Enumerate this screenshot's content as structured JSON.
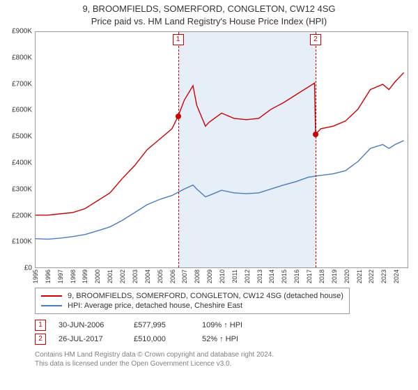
{
  "title_line1": "9, BROOMFIELDS, SOMERFORD, CONGLETON, CW12 4SG",
  "title_line2": "Price paid vs. HM Land Registry's House Price Index (HPI)",
  "colors": {
    "series_price": "#cc0000",
    "series_hpi": "#4a7bbf",
    "shade": "rgba(173,199,232,0.30)",
    "grid": "#999999",
    "text": "#333333",
    "footer": "#808080",
    "background": "#ffffff"
  },
  "chart": {
    "type": "line",
    "x_domain": [
      1995,
      2025
    ],
    "y_domain": [
      0,
      900
    ],
    "y_unit_prefix": "£",
    "y_unit_suffix": "K",
    "x_ticks": [
      1995,
      1996,
      1997,
      1998,
      1999,
      2000,
      2001,
      2002,
      2003,
      2004,
      2005,
      2006,
      2007,
      2008,
      2009,
      2010,
      2011,
      2012,
      2013,
      2014,
      2015,
      2016,
      2017,
      2018,
      2019,
      2020,
      2021,
      2022,
      2023,
      2024
    ],
    "y_ticks": [
      0,
      100,
      200,
      300,
      400,
      500,
      600,
      700,
      800,
      900
    ],
    "grid": false,
    "shade_from_x": 2006.5,
    "shade_to_x": 2017.58,
    "line_width": 1.4,
    "series": {
      "price": {
        "label": "9, BROOMFIELDS, SOMERFORD, CONGLETON, CW12 4SG (detached house)",
        "color": "#cc0000",
        "points": [
          [
            1995,
            200
          ],
          [
            1996,
            200
          ],
          [
            1997,
            205
          ],
          [
            1998,
            210
          ],
          [
            1999,
            225
          ],
          [
            2000,
            255
          ],
          [
            2001,
            285
          ],
          [
            2002,
            340
          ],
          [
            2003,
            390
          ],
          [
            2004,
            450
          ],
          [
            2005,
            490
          ],
          [
            2006,
            530
          ],
          [
            2006.5,
            578
          ],
          [
            2007,
            640
          ],
          [
            2007.7,
            695
          ],
          [
            2008,
            620
          ],
          [
            2008.7,
            540
          ],
          [
            2009,
            555
          ],
          [
            2010,
            590
          ],
          [
            2011,
            570
          ],
          [
            2012,
            565
          ],
          [
            2013,
            570
          ],
          [
            2014,
            605
          ],
          [
            2015,
            630
          ],
          [
            2016,
            660
          ],
          [
            2017,
            690
          ],
          [
            2017.5,
            705
          ],
          [
            2017.58,
            510
          ],
          [
            2018,
            530
          ],
          [
            2019,
            540
          ],
          [
            2020,
            560
          ],
          [
            2021,
            605
          ],
          [
            2022,
            680
          ],
          [
            2023,
            700
          ],
          [
            2023.5,
            680
          ],
          [
            2024,
            710
          ],
          [
            2024.7,
            745
          ]
        ]
      },
      "hpi": {
        "label": "HPI: Average price, detached house, Cheshire East",
        "color": "#4a7bbf",
        "points": [
          [
            1995,
            110
          ],
          [
            1996,
            108
          ],
          [
            1997,
            112
          ],
          [
            1998,
            118
          ],
          [
            1999,
            126
          ],
          [
            2000,
            140
          ],
          [
            2001,
            155
          ],
          [
            2002,
            180
          ],
          [
            2003,
            210
          ],
          [
            2004,
            240
          ],
          [
            2005,
            260
          ],
          [
            2006,
            275
          ],
          [
            2007,
            300
          ],
          [
            2007.7,
            315
          ],
          [
            2008,
            300
          ],
          [
            2008.7,
            270
          ],
          [
            2009,
            275
          ],
          [
            2010,
            295
          ],
          [
            2011,
            285
          ],
          [
            2012,
            282
          ],
          [
            2013,
            285
          ],
          [
            2014,
            300
          ],
          [
            2015,
            315
          ],
          [
            2016,
            328
          ],
          [
            2017,
            345
          ],
          [
            2018,
            352
          ],
          [
            2019,
            358
          ],
          [
            2020,
            370
          ],
          [
            2021,
            405
          ],
          [
            2022,
            455
          ],
          [
            2023,
            470
          ],
          [
            2023.5,
            455
          ],
          [
            2024,
            470
          ],
          [
            2024.7,
            485
          ]
        ]
      }
    },
    "markers": [
      {
        "n": "1",
        "x": 2006.5,
        "price_y": 578,
        "label_y": 870,
        "color": "#cc0000"
      },
      {
        "n": "2",
        "x": 2017.58,
        "price_y": 510,
        "label_y": 870,
        "color": "#cc0000"
      }
    ]
  },
  "legend": [
    {
      "color": "#cc0000",
      "text": "9, BROOMFIELDS, SOMERFORD, CONGLETON, CW12 4SG (detached house)"
    },
    {
      "color": "#4a7bbf",
      "text": "HPI: Average price, detached house, Cheshire East"
    }
  ],
  "sales": [
    {
      "n": "1",
      "color": "#cc0000",
      "date": "30-JUN-2006",
      "price": "£577,995",
      "hpi": "109% ↑ HPI"
    },
    {
      "n": "2",
      "color": "#cc0000",
      "date": "26-JUL-2017",
      "price": "£510,000",
      "hpi": "52% ↑ HPI"
    }
  ],
  "footer_line1": "Contains HM Land Registry data © Crown copyright and database right 2024.",
  "footer_line2": "This data is licensed under the Open Government Licence v3.0.",
  "typography": {
    "title_fontsize": 13,
    "axis_fontsize": 10,
    "legend_fontsize": 11,
    "footer_fontsize": 10
  }
}
